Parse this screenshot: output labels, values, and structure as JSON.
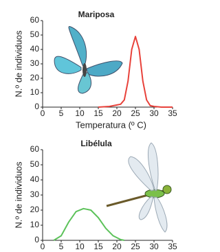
{
  "chart_data": [
    {
      "type": "line",
      "title": "Mariposa",
      "y_label": "N.º de individuos",
      "x_label": "Temperatura (º C)",
      "x": [
        15,
        18,
        20,
        21,
        22,
        23,
        24,
        25,
        26,
        27,
        28,
        29,
        30,
        32,
        35
      ],
      "series": [
        {
          "color": "#e8413a",
          "values": [
            0,
            0.5,
            1.5,
            2,
            5,
            18,
            40,
            49,
            40,
            18,
            5,
            1,
            0.5,
            0,
            0
          ]
        }
      ],
      "xlim": [
        0,
        35
      ],
      "ylim": [
        0,
        60
      ],
      "xticks": [
        0,
        5,
        10,
        15,
        20,
        25,
        30,
        35
      ],
      "yticks": [
        0,
        10,
        20,
        30,
        40,
        50,
        60
      ]
    },
    {
      "type": "line",
      "title": "Libélula",
      "y_label": "N.º de individuos",
      "x": [
        3,
        5,
        7,
        9,
        11,
        13,
        15,
        17,
        19,
        21,
        22
      ],
      "series": [
        {
          "color": "#5cc25a",
          "values": [
            0,
            3,
            12,
            19,
            21,
            20,
            15,
            8,
            3,
            0.5,
            0
          ]
        }
      ],
      "xlim": [
        0,
        35
      ],
      "ylim": [
        0,
        60
      ],
      "xticks": [
        0,
        5,
        10,
        15,
        20,
        25,
        30,
        35
      ],
      "yticks": [
        0,
        10,
        20,
        30,
        40,
        50,
        60
      ]
    }
  ]
}
